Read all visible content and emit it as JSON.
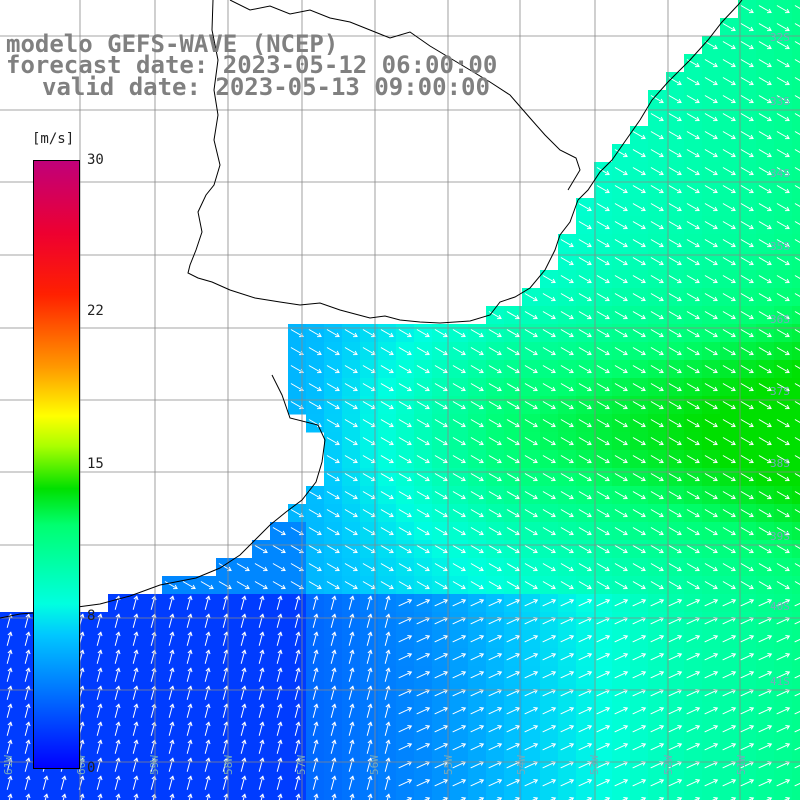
{
  "title": {
    "line1": "modelo GEFS-WAVE (NCEP)",
    "line2": "forecast date: 2023-05-12 06:00:00",
    "line3": "valid date: 2023-05-13 09:00:00"
  },
  "colorbar": {
    "unit": "[m/s]",
    "min": 0,
    "max": 30,
    "ticks": [
      "30",
      "22",
      "15",
      "8",
      "0"
    ],
    "tick_values": [
      30,
      22,
      15,
      8,
      0
    ],
    "colors": [
      "#0000ff",
      "#0078ff",
      "#00c8ff",
      "#00ffe0",
      "#00ff70",
      "#00e000",
      "#aaff00",
      "#ffff00",
      "#ff9900",
      "#ff2000",
      "#c0007a"
    ]
  },
  "map": {
    "variable": "wind speed with direction arrows",
    "land_color": "#ffffff",
    "arrow_color": "#ffffff",
    "grid_color": "#888888",
    "coastline_color": "#000000",
    "lat_labels": [
      "32S",
      "33S",
      "34S",
      "35S",
      "36S",
      "37S",
      "38S",
      "39S",
      "40S",
      "41S"
    ],
    "lon_labels": [
      "61W",
      "60W",
      "59W",
      "58W",
      "57W",
      "56W",
      "55W",
      "54W",
      "53W",
      "52W",
      "51W"
    ]
  }
}
